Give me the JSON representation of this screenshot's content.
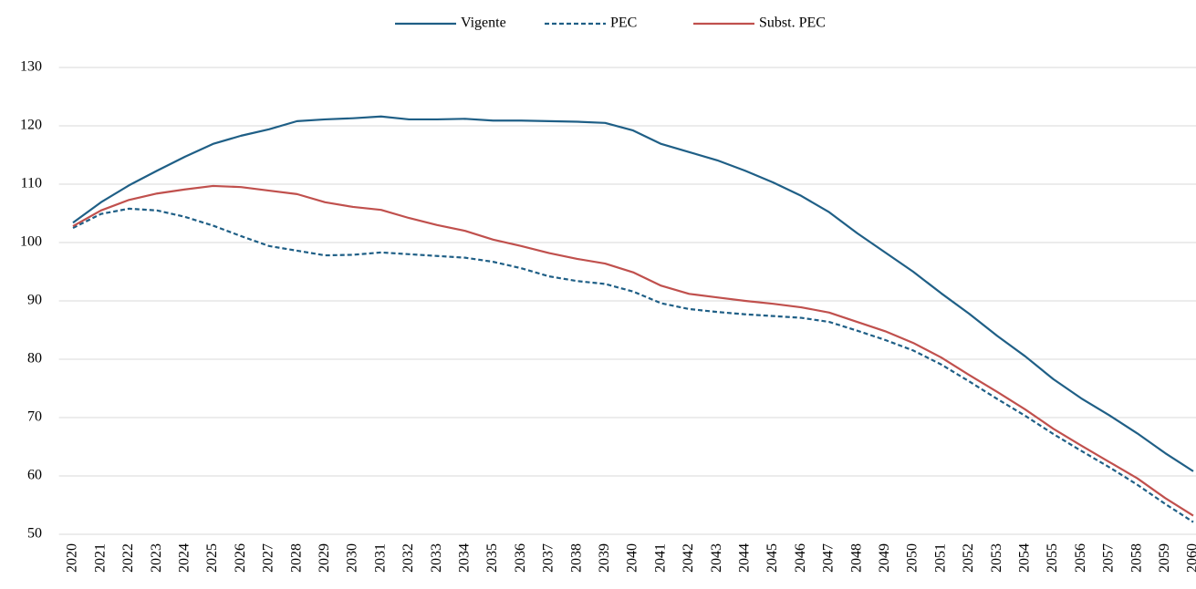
{
  "chart_data": {
    "type": "line",
    "categories": [
      "2020",
      "2021",
      "2022",
      "2023",
      "2024",
      "2025",
      "2026",
      "2027",
      "2028",
      "2029",
      "2030",
      "2031",
      "2032",
      "2033",
      "2034",
      "2035",
      "2036",
      "2037",
      "2038",
      "2039",
      "2040",
      "2041",
      "2042",
      "2043",
      "2044",
      "2045",
      "2046",
      "2047",
      "2048",
      "2049",
      "2050",
      "2051",
      "2052",
      "2053",
      "2054",
      "2055",
      "2056",
      "2057",
      "2058",
      "2059",
      "2060"
    ],
    "series": [
      {
        "name": "Vigente",
        "color": "#1f5f86",
        "dashed": false,
        "values": [
          103.4,
          106.9,
          109.8,
          112.3,
          114.7,
          116.9,
          118.3,
          119.4,
          120.8,
          121.1,
          121.3,
          121.6,
          121.1,
          121.1,
          121.2,
          120.9,
          120.9,
          120.8,
          120.7,
          120.5,
          119.2,
          116.9,
          115.5,
          114.1,
          112.3,
          110.3,
          108.0,
          105.2,
          101.6,
          98.3,
          95.0,
          91.3,
          87.8,
          84.0,
          80.5,
          76.6,
          73.3,
          70.4,
          67.3,
          63.9,
          60.8
        ]
      },
      {
        "name": "PEC",
        "color": "#1f5f86",
        "dashed": true,
        "values": [
          102.5,
          104.9,
          105.8,
          105.5,
          104.4,
          102.9,
          101.1,
          99.4,
          98.6,
          97.8,
          97.9,
          98.3,
          98.0,
          97.7,
          97.4,
          96.7,
          95.6,
          94.2,
          93.4,
          92.9,
          91.6,
          89.6,
          88.6,
          88.1,
          87.7,
          87.4,
          87.1,
          86.4,
          84.9,
          83.3,
          81.5,
          79.1,
          76.2,
          73.2,
          70.3,
          67.2,
          64.3,
          61.5,
          58.5,
          55.2,
          52.1
        ]
      },
      {
        "name": "Subst. PEC",
        "color": "#c0504d",
        "dashed": false,
        "values": [
          102.8,
          105.5,
          107.3,
          108.4,
          109.1,
          109.7,
          109.5,
          108.9,
          108.3,
          106.9,
          106.1,
          105.6,
          104.2,
          103.0,
          102.0,
          100.5,
          99.4,
          98.2,
          97.2,
          96.4,
          94.9,
          92.6,
          91.2,
          90.6,
          90.0,
          89.5,
          88.9,
          88.0,
          86.4,
          84.8,
          82.8,
          80.3,
          77.3,
          74.4,
          71.4,
          68.1,
          65.2,
          62.4,
          59.6,
          56.2,
          53.2
        ]
      }
    ],
    "ylim": [
      50,
      130
    ],
    "yticks": [
      50,
      60,
      70,
      80,
      90,
      100,
      110,
      120,
      130
    ],
    "grid": true,
    "legend": "top"
  }
}
